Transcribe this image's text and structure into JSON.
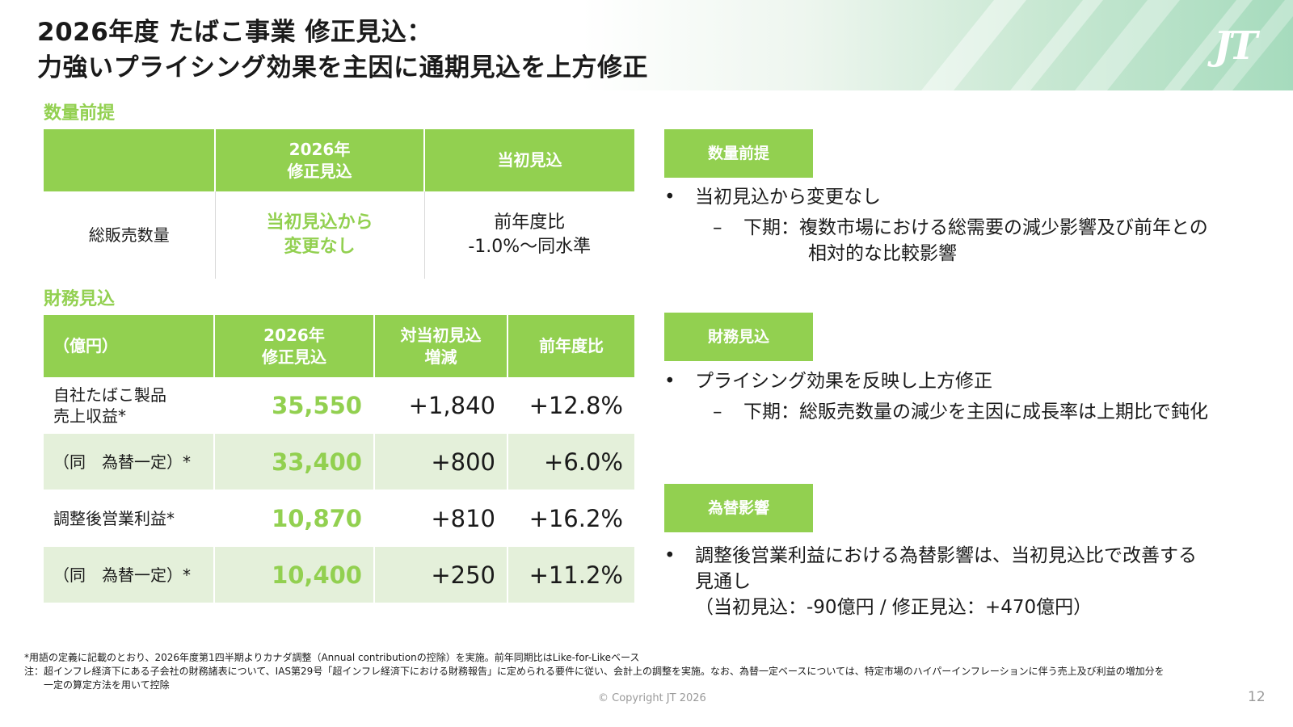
{
  "header": {
    "title_line1": "2026年度 たばこ事業 修正見込：",
    "title_line2": "力強いプライシング効果を主因に通期見込を上方修正",
    "logo": "JT"
  },
  "volume": {
    "section_label": "数量前提",
    "headers": [
      "",
      "2026年\n修正見込",
      "当初見込"
    ],
    "row": {
      "label": "総販売数量",
      "revised": "当初見込から\n変更なし",
      "initial": "前年度比\n-1.0%～同水準"
    }
  },
  "finance": {
    "section_label": "財務見込",
    "headers": [
      "（億円）",
      "2026年\n修正見込",
      "対当初見込\n増減",
      "前年度比"
    ],
    "rows": [
      {
        "label": "自社たばこ製品\n売上収益*",
        "revised": "35,550",
        "vs_initial": "+1,840",
        "yoy": "+12.8%"
      },
      {
        "label": "（同　為替一定）*",
        "revised": "33,400",
        "vs_initial": "+800",
        "yoy": "+6.0%"
      },
      {
        "label": "調整後営業利益*",
        "revised": "10,870",
        "vs_initial": "+810",
        "yoy": "+16.2%"
      },
      {
        "label": "（同　為替一定）*",
        "revised": "10,400",
        "vs_initial": "+250",
        "yoy": "+11.2%"
      }
    ]
  },
  "notes": {
    "volume": {
      "box": "数量前提",
      "bullet_mark": "•",
      "bullet": "当初見込から変更なし",
      "sub_dash": "–",
      "sub_line1": "下期：複数市場における総需要の減少影響及び前年との",
      "sub_line2": "相対的な比較影響"
    },
    "finance": {
      "box": "財務見込",
      "bullet_mark": "•",
      "bullet": "プライシング効果を反映し上方修正",
      "sub_dash": "–",
      "sub_line1": "下期：総販売数量の減少を主因に成長率は上期比で鈍化"
    },
    "fx": {
      "box": "為替影響",
      "bullet_mark": "•",
      "line1": "調整後営業利益における為替影響は、当初見込比で改善する",
      "line2": "見通し",
      "line3": "（当初見込：-90億円 / 修正見込：+470億円）"
    }
  },
  "footer": {
    "note1": "*用語の定義に記載のとおり、2026年度第1四半期よりカナダ調整（Annual contributionの控除）を実施。前年同期比はLike-for-Likeベース",
    "note2_line1": "注：超インフレ経済下にある子会社の財務諸表について、IAS第29号「超インフレ経済下における財務報告」に定められる要件に従い、会計上の調整を実施。なお、為替一定ベースについては、特定市場のハイパーインフレーションに伴う売上及び利益の増加分を",
    "note2_line2": "　　一定の算定方法を用いて控除",
    "copyright": "© Copyright JT 2026",
    "page_number": "12"
  },
  "colors": {
    "accent_green": "#92d050",
    "row_tint": "#e4f0da",
    "header_mint": "#a6dbbd"
  }
}
